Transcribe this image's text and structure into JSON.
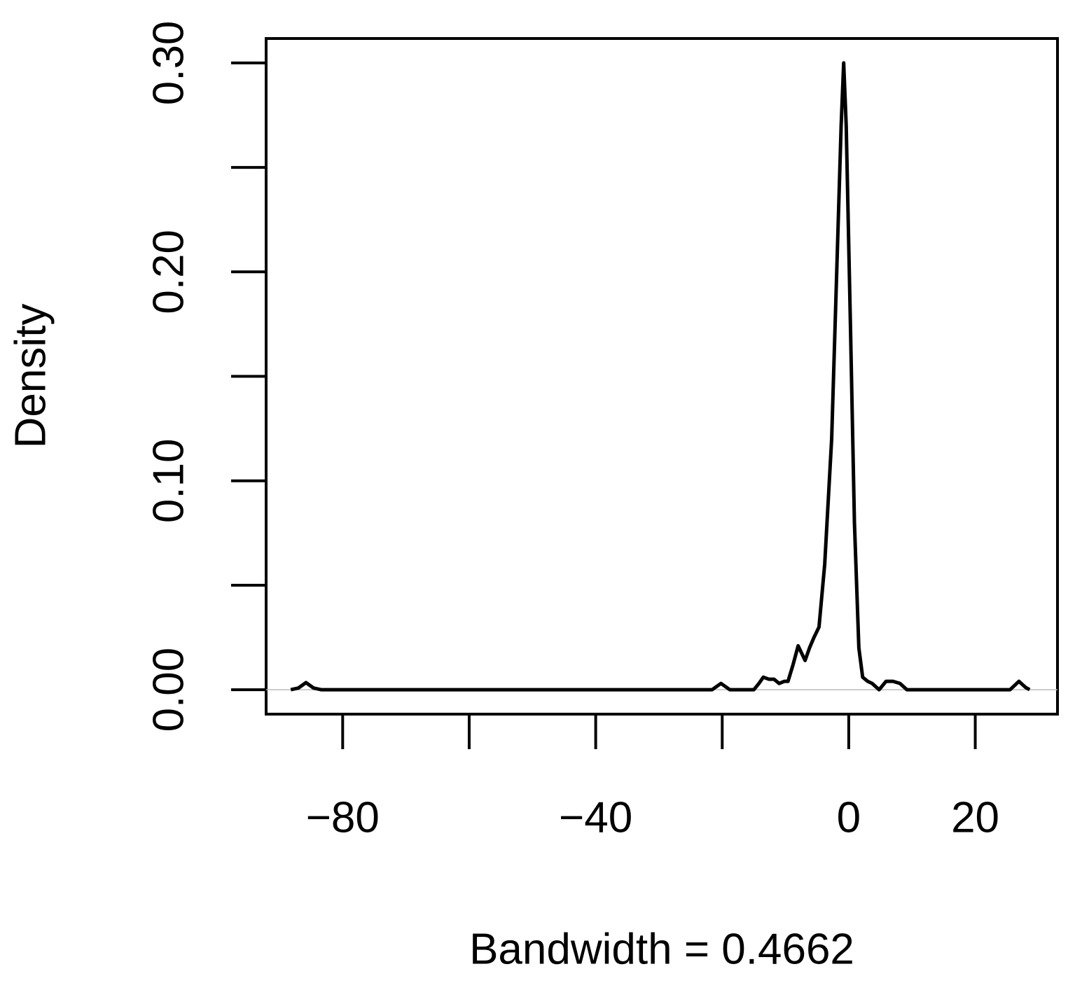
{
  "chart_data": {
    "type": "line",
    "xlabel": "Bandwidth = 0.4662",
    "ylabel": "Density",
    "x": [
      -88.2,
      -87,
      -85.8,
      -84.6,
      -83.4,
      -21.6,
      -20.2,
      -18.8,
      -15,
      -14.2,
      -13.5,
      -12.6,
      -11.8,
      -11,
      -10.2,
      -9.6,
      -8.8,
      -8.0,
      -6.9,
      -6.2,
      -5.5,
      -4.7,
      -3.8,
      -2.7,
      -1.9,
      -1.2,
      -0.8,
      -0.4,
      0.3,
      0.9,
      1.6,
      2.2,
      3.0,
      3.7,
      4.8,
      5.9,
      7.0,
      8.1,
      9.2,
      25.5,
      26.9,
      28.0,
      28.6
    ],
    "values": [
      0,
      0.0008,
      0.0034,
      0.0008,
      0,
      0,
      0.003,
      0,
      0,
      0.003,
      0.006,
      0.005,
      0.005,
      0.003,
      0.004,
      0.004,
      0.012,
      0.021,
      0.014,
      0.02,
      0.025,
      0.03,
      0.06,
      0.12,
      0.2,
      0.27,
      0.3,
      0.27,
      0.17,
      0.08,
      0.02,
      0.006,
      0.004,
      0.003,
      0,
      0.004,
      0.004,
      0.003,
      0,
      0,
      0.004,
      0.001,
      0
    ],
    "color": "#000000",
    "xlim": [
      -92.1,
      33.0
    ],
    "ylim": [
      -0.0117,
      0.3117
    ],
    "xticks": [
      {
        "value": -80,
        "label": "−80"
      },
      {
        "value": -60,
        "label": null
      },
      {
        "value": -40,
        "label": "−40"
      },
      {
        "value": -20,
        "label": null
      },
      0,
      20
    ],
    "yticks": [
      {
        "value": 0,
        "label": "0.00"
      },
      {
        "value": 0.05,
        "label": null
      },
      {
        "value": 0.1,
        "label": "0.10"
      },
      {
        "value": 0.15,
        "label": null
      },
      {
        "value": 0.2,
        "label": "0.20"
      },
      {
        "value": 0.25,
        "label": null
      },
      {
        "value": 0.3,
        "label": "0.30"
      }
    ]
  }
}
